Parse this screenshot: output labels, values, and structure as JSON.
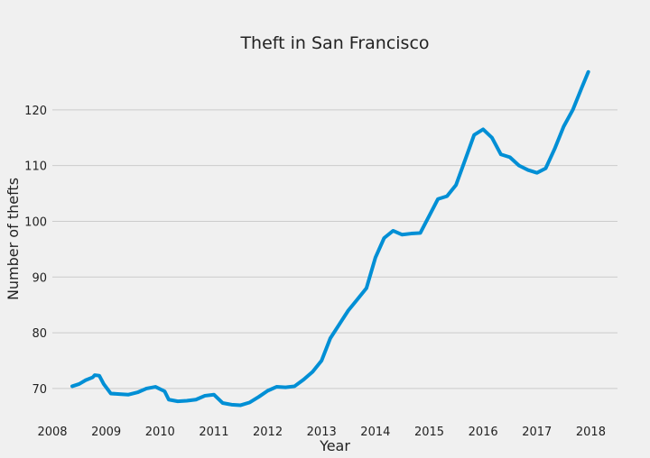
{
  "chart_data": {
    "type": "line",
    "title": "Theft in San Francisco",
    "xlabel": "Year",
    "ylabel": "Number of thefts",
    "xlim": [
      "2008-01-01",
      "2018-07-01"
    ],
    "ylim": [
      64,
      130
    ],
    "x_ticks": [
      "2008",
      "2009",
      "2010",
      "2011",
      "2012",
      "2013",
      "2014",
      "2015",
      "2016",
      "2017",
      "2018"
    ],
    "y_ticks": [
      70,
      80,
      90,
      100,
      110,
      120
    ],
    "grid": "horizontal",
    "legend": "none",
    "series": [
      {
        "color": "#008fd5",
        "x": [
          "2008-05-15",
          "2008-07-01",
          "2008-08-15",
          "2008-10-01",
          "2008-10-15",
          "2008-11-15",
          "2008-12-15",
          "2009-02-01",
          "2009-04-01",
          "2009-06-01",
          "2009-08-01",
          "2009-10-01",
          "2009-12-01",
          "2010-02-01",
          "2010-03-01",
          "2010-05-01",
          "2010-07-01",
          "2010-09-01",
          "2010-11-01",
          "2011-01-01",
          "2011-03-01",
          "2011-05-01",
          "2011-07-01",
          "2011-09-01",
          "2011-11-01",
          "2012-01-01",
          "2012-03-01",
          "2012-05-01",
          "2012-07-01",
          "2012-09-01",
          "2012-11-01",
          "2013-01-01",
          "2013-03-01",
          "2013-05-01",
          "2013-07-01",
          "2013-09-01",
          "2013-11-01",
          "2014-01-01",
          "2014-03-01",
          "2014-05-01",
          "2014-07-01",
          "2014-09-01",
          "2014-11-01",
          "2015-01-01",
          "2015-03-01",
          "2015-05-01",
          "2015-07-01",
          "2015-09-01",
          "2015-11-01",
          "2016-01-01",
          "2016-03-01",
          "2016-05-01",
          "2016-07-01",
          "2016-09-01",
          "2016-11-01",
          "2017-01-01",
          "2017-03-01",
          "2017-05-01",
          "2017-07-01",
          "2017-09-01",
          "2017-11-01",
          "2017-12-15"
        ],
        "y": [
          70.4,
          70.8,
          71.5,
          72.0,
          72.4,
          72.3,
          70.8,
          69.1,
          69.0,
          68.9,
          69.3,
          70.0,
          70.3,
          69.5,
          68.0,
          67.7,
          67.8,
          68.0,
          68.7,
          68.9,
          67.4,
          67.1,
          67.0,
          67.5,
          68.5,
          69.6,
          70.3,
          70.2,
          70.4,
          71.6,
          73.0,
          75.0,
          79.0,
          81.5,
          84.0,
          86.0,
          88.0,
          93.5,
          97.0,
          98.3,
          97.6,
          97.8,
          97.9,
          101.0,
          104.0,
          104.5,
          106.5,
          111.0,
          115.5,
          116.5,
          115.0,
          112.0,
          111.5,
          110.0,
          109.2,
          108.7,
          109.5,
          113.0,
          117.0,
          120.0,
          124.0,
          126.8
        ]
      }
    ]
  }
}
